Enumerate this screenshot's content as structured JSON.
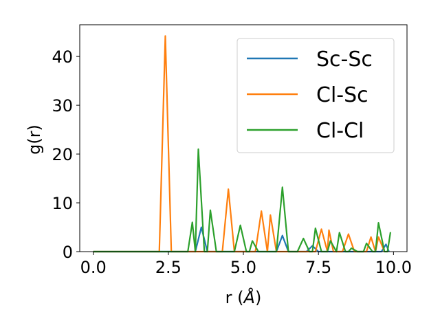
{
  "chart_data": {
    "type": "line",
    "xlabel_prefix": "r (",
    "xlabel_unit": "Å",
    "xlabel_suffix": ")",
    "ylabel": "g(r)",
    "xlim": [
      -0.45,
      10.45
    ],
    "ylim": [
      0,
      46.5
    ],
    "xticks": [
      {
        "value": 0.0,
        "label": "0.0"
      },
      {
        "value": 2.5,
        "label": "2.5"
      },
      {
        "value": 5.0,
        "label": "5.0"
      },
      {
        "value": 7.5,
        "label": "7.5"
      },
      {
        "value": 10.0,
        "label": "10.0"
      }
    ],
    "yticks": [
      {
        "value": 0,
        "label": "0"
      },
      {
        "value": 10,
        "label": "10"
      },
      {
        "value": 20,
        "label": "20"
      },
      {
        "value": 30,
        "label": "30"
      },
      {
        "value": 40,
        "label": "40"
      }
    ],
    "grid": false,
    "legend_position": "top-right",
    "series": [
      {
        "name": "Sc-Sc",
        "color": "#1f77b4",
        "points": [
          [
            0,
            0
          ],
          [
            3.4,
            0
          ],
          [
            3.6,
            5.0
          ],
          [
            3.8,
            0
          ],
          [
            6.1,
            0
          ],
          [
            6.3,
            3.3
          ],
          [
            6.5,
            0
          ],
          [
            7.1,
            0
          ],
          [
            7.3,
            1.2
          ],
          [
            7.5,
            0
          ],
          [
            9.6,
            0
          ],
          [
            9.75,
            1.5
          ],
          [
            9.85,
            0
          ]
        ]
      },
      {
        "name": "Cl-Sc",
        "color": "#ff7f0e",
        "points": [
          [
            0,
            0
          ],
          [
            2.2,
            0
          ],
          [
            2.4,
            44.2
          ],
          [
            2.6,
            0
          ],
          [
            4.3,
            0
          ],
          [
            4.5,
            12.8
          ],
          [
            4.7,
            0
          ],
          [
            5.4,
            0
          ],
          [
            5.6,
            8.3
          ],
          [
            5.8,
            0
          ],
          [
            5.9,
            7.5
          ],
          [
            6.1,
            0
          ],
          [
            7.4,
            0
          ],
          [
            7.6,
            4.6
          ],
          [
            7.8,
            0
          ],
          [
            7.85,
            4.4
          ],
          [
            8.0,
            0
          ],
          [
            8.3,
            0
          ],
          [
            8.5,
            3.6
          ],
          [
            8.7,
            0
          ],
          [
            9.1,
            0
          ],
          [
            9.25,
            3.0
          ],
          [
            9.4,
            0
          ],
          [
            9.5,
            3.0
          ],
          [
            9.7,
            0
          ]
        ]
      },
      {
        "name": "Cl-Cl",
        "color": "#2ca02c",
        "points": [
          [
            0,
            0
          ],
          [
            3.15,
            0
          ],
          [
            3.3,
            6.0
          ],
          [
            3.4,
            0
          ],
          [
            3.5,
            21.0
          ],
          [
            3.7,
            0
          ],
          [
            3.8,
            0
          ],
          [
            3.9,
            8.5
          ],
          [
            4.1,
            0
          ],
          [
            4.7,
            0
          ],
          [
            4.9,
            5.4
          ],
          [
            5.1,
            0
          ],
          [
            5.2,
            0
          ],
          [
            5.3,
            2.2
          ],
          [
            5.5,
            0
          ],
          [
            6.1,
            0
          ],
          [
            6.3,
            13.2
          ],
          [
            6.5,
            0
          ],
          [
            6.8,
            0
          ],
          [
            7.0,
            2.7
          ],
          [
            7.2,
            0
          ],
          [
            7.3,
            0
          ],
          [
            7.4,
            4.8
          ],
          [
            7.6,
            0
          ],
          [
            7.8,
            0
          ],
          [
            7.9,
            2.2
          ],
          [
            8.1,
            0
          ],
          [
            8.1,
            0
          ],
          [
            8.2,
            3.9
          ],
          [
            8.4,
            0
          ],
          [
            8.5,
            0
          ],
          [
            8.6,
            0.7
          ],
          [
            8.8,
            0
          ],
          [
            9.0,
            0
          ],
          [
            9.1,
            1.7
          ],
          [
            9.3,
            0
          ],
          [
            9.4,
            0
          ],
          [
            9.5,
            5.9
          ],
          [
            9.7,
            0
          ],
          [
            9.8,
            0
          ],
          [
            9.9,
            4.0
          ]
        ]
      }
    ]
  }
}
